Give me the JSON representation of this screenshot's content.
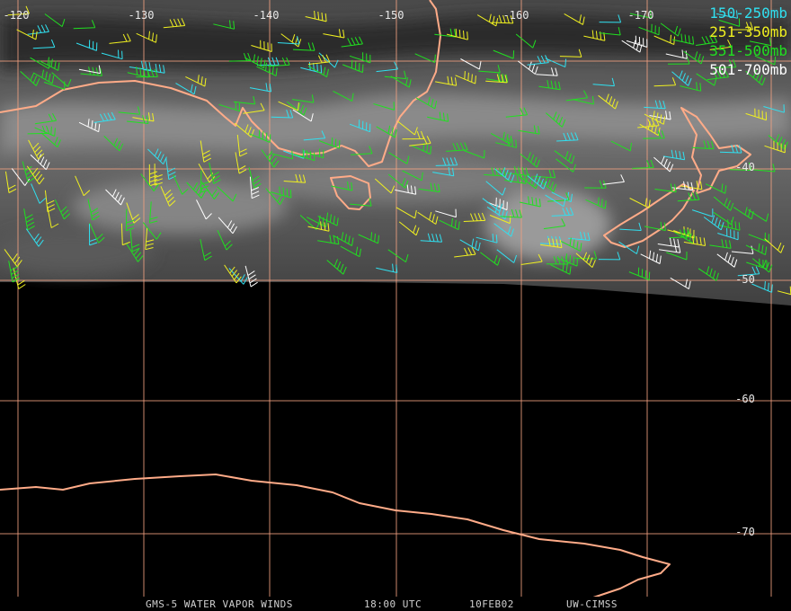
{
  "map": {
    "longitude_labels": [
      -120,
      -130,
      -140,
      -150,
      -160,
      -170
    ],
    "latitude_labels": [
      -40,
      -50,
      -60,
      -70
    ],
    "legend": [
      {
        "label": "150-250mb",
        "color": "#30e0f0"
      },
      {
        "label": "251-350mb",
        "color": "#f0f020"
      },
      {
        "label": "351-500mb",
        "color": "#20e020"
      },
      {
        "label": "501-700mb",
        "color": "#ffffff"
      }
    ]
  },
  "footer": {
    "product": "GMS-5 WATER VAPOR WINDS",
    "time": "18:00 UTC",
    "date": "10FEB02",
    "source": "UW-CIMSS"
  }
}
